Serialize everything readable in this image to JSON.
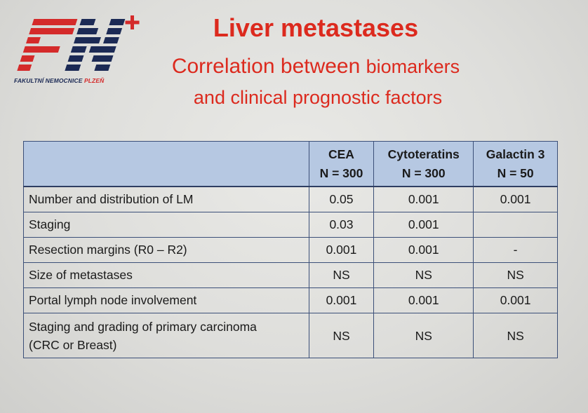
{
  "logo": {
    "mark": "FN+",
    "caption_main": "FAKULTNÍ NEMOCNICE ",
    "caption_city": "PLZEŇ",
    "colors": {
      "red": "#d42a2a",
      "navy": "#1c2a55"
    }
  },
  "title": {
    "main": "Liver metastases",
    "subtitle_part1": "Correlation between ",
    "subtitle_part2": "biomarkers",
    "subtitle_line2": "and clinical prognostic factors",
    "color": "#dc2a1e"
  },
  "table": {
    "headers": [
      {
        "line1": "",
        "line2": ""
      },
      {
        "line1": "CEA",
        "line2": "N = 300"
      },
      {
        "line1": "Cytoteratins",
        "line2": "N = 300"
      },
      {
        "line1": "Galactin 3",
        "line2": "N = 50"
      }
    ],
    "rows": [
      {
        "label": "Number and distribution of LM",
        "label2": "",
        "cea": "0.05",
        "cytoteratins": "0.001",
        "galactin3": "0.001"
      },
      {
        "label": "Staging",
        "label2": "",
        "cea": "0.03",
        "cytoteratins": "0.001",
        "galactin3": ""
      },
      {
        "label": "Resection margins (R0 – R2)",
        "label2": "",
        "cea": "0.001",
        "cytoteratins": "0.001",
        "galactin3": "-"
      },
      {
        "label": "Size of metastases",
        "label2": "",
        "cea": "NS",
        "cytoteratins": "NS",
        "galactin3": "NS"
      },
      {
        "label": "Portal lymph node involvement",
        "label2": "",
        "cea": "0.001",
        "cytoteratins": "0.001",
        "galactin3": "0.001"
      },
      {
        "label": "Staging and grading of primary carcinoma",
        "label2": "(CRC or Breast)",
        "cea": "NS",
        "cytoteratins": "NS",
        "galactin3": "NS"
      }
    ],
    "header_color": "#b6c8e2",
    "border_color": "#3b4f78"
  }
}
